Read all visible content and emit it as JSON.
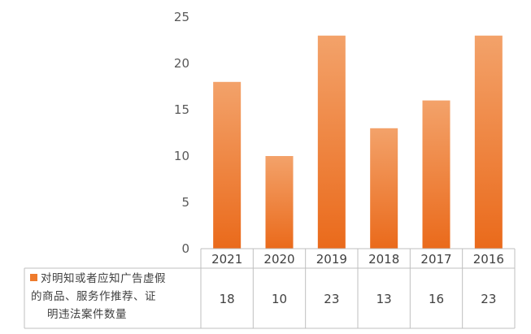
{
  "chart_data": {
    "type": "bar",
    "categories": [
      "2021",
      "2020",
      "2019",
      "2018",
      "2017",
      "2016"
    ],
    "series": [
      {
        "name": "对明知或者应知广告虚假的商品、服务作推荐、证明违法案件数量",
        "name_lines": [
          "对明知或者应知广告虚假",
          "的商品、服务作推荐、证",
          "明违法案件数量"
        ],
        "values": [
          18,
          10,
          23,
          13,
          16,
          23
        ],
        "color": "#ee7a2c"
      }
    ],
    "yticks": [
      "0",
      "5",
      "10",
      "15",
      "20",
      "25"
    ],
    "ylim": [
      0,
      25
    ],
    "grid": false,
    "legend": "data-table",
    "data_table": true,
    "colors": {
      "bar_top": "#f3a26a",
      "bar_bottom": "#ea6a1b",
      "axis": "#bfbfbf",
      "text": "#404040"
    }
  }
}
